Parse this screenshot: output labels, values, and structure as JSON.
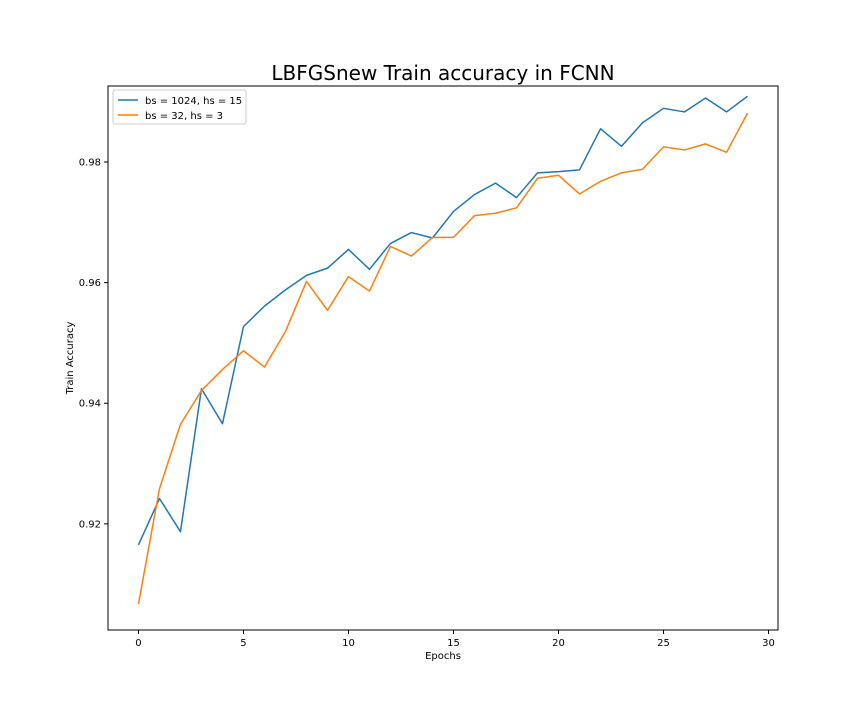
{
  "chart_data": {
    "type": "line",
    "title": "LBFGSnew Train accuracy in FCNN",
    "xlabel": "Epochs",
    "ylabel": "Train Accuracy",
    "xlim": [
      -1.45,
      30.45
    ],
    "ylim": [
      0.9024,
      0.9926
    ],
    "xticks": [
      0,
      5,
      10,
      15,
      20,
      25,
      30
    ],
    "yticks": [
      0.92,
      0.94,
      0.96,
      0.98
    ],
    "ytick_labels": [
      "0.92",
      "0.94",
      "0.96",
      "0.98"
    ],
    "grid": false,
    "legend_position": "top-left",
    "x": [
      0,
      1,
      2,
      3,
      4,
      5,
      6,
      7,
      8,
      9,
      10,
      11,
      12,
      13,
      14,
      15,
      16,
      17,
      18,
      19,
      20,
      21,
      22,
      23,
      24,
      25,
      26,
      27,
      28,
      29
    ],
    "series": [
      {
        "name": "bs = 1024, hs = 15",
        "color": "#1f77b4",
        "values": [
          0.9165,
          0.9242,
          0.9187,
          0.9424,
          0.9366,
          0.9527,
          0.9561,
          0.9588,
          0.9612,
          0.9624,
          0.9655,
          0.9622,
          0.9665,
          0.9683,
          0.9674,
          0.9718,
          0.9746,
          0.9765,
          0.9741,
          0.9782,
          0.9784,
          0.9787,
          0.9855,
          0.9826,
          0.9865,
          0.9889,
          0.9883,
          0.9906,
          0.9883,
          0.9909
        ]
      },
      {
        "name": "bs = 32, hs = 3",
        "color": "#ff7f0e",
        "values": [
          0.9067,
          0.9258,
          0.9365,
          0.9421,
          0.9456,
          0.9487,
          0.946,
          0.9519,
          0.9602,
          0.9554,
          0.961,
          0.9586,
          0.966,
          0.9644,
          0.9675,
          0.9675,
          0.9711,
          0.9715,
          0.9724,
          0.9773,
          0.9778,
          0.9747,
          0.9768,
          0.9782,
          0.9788,
          0.9825,
          0.982,
          0.983,
          0.9816,
          0.9881
        ]
      }
    ]
  }
}
